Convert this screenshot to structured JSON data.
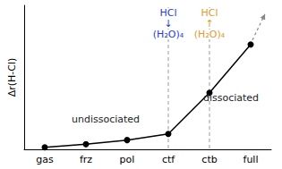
{
  "chart_data": {
    "type": "line",
    "categories": [
      "gas",
      "frz",
      "pol",
      "ctf",
      "ctb",
      "full"
    ],
    "values": [
      0.2,
      0.5,
      0.9,
      1.5,
      5.5,
      10.2
    ],
    "color": "#000000",
    "marker": "circle",
    "ylim": [
      0,
      14
    ],
    "y_label": "Δr(H-Cl)",
    "tick_labels": "x",
    "grid": false,
    "annotations": [
      {
        "category": "ctf",
        "text": [
          "HCl",
          "↓",
          "(H₂O)₄"
        ],
        "color": "#2b3bd9",
        "line_style": "dashed"
      },
      {
        "category": "ctb",
        "text": [
          "HCl",
          "↑",
          "(H₂O)₄"
        ],
        "color": "#e39a2e",
        "line_style": "dashed"
      },
      {
        "category": "frz",
        "text": [
          "undissociated"
        ],
        "color": "#222222"
      },
      {
        "category": "full",
        "text": [
          "dissociated"
        ],
        "color": "#222222"
      }
    ]
  }
}
